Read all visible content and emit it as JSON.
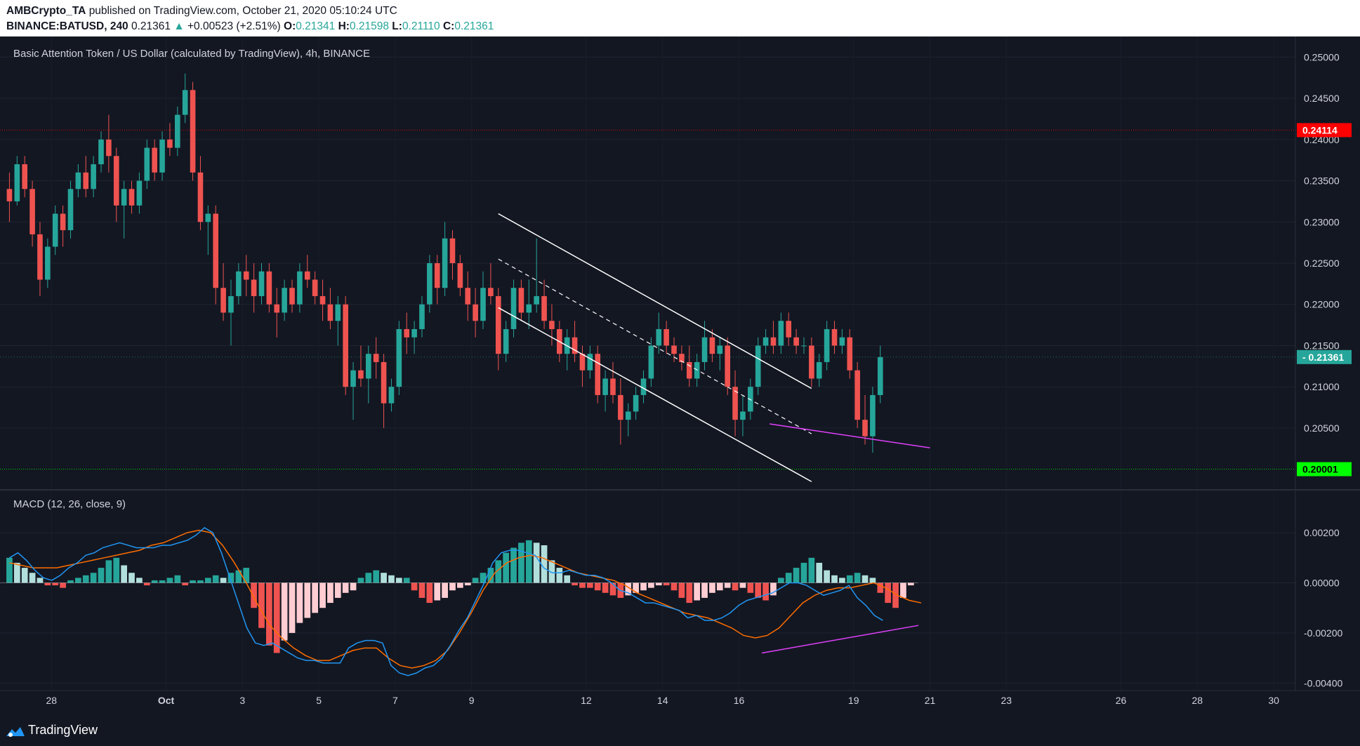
{
  "header": {
    "author": "AMBCrypto_TA",
    "published_text": "published on TradingView.com, October 21, 2020 05:10:24 UTC",
    "symbol": "BINANCE:BATUSD, 240",
    "last": "0.21361",
    "change": "+0.00523 (+2.51%)",
    "o_label": "O:",
    "o_value": "0.21341",
    "h_label": "H:",
    "h_value": "0.21598",
    "l_label": "L:",
    "l_value": "0.21110",
    "c_label": "C:",
    "c_value": "0.21361",
    "change_arrow": "▲"
  },
  "footer": {
    "brand": "TradingView",
    "logo_icon": "tradingview-logo-icon"
  },
  "colors": {
    "up": "#26a69a",
    "down": "#ef5350",
    "macd": "#2196f3",
    "signal": "#ff6d00",
    "hist_up_strong": "#26a69a",
    "hist_up_weak": "#b2dfdb",
    "hist_down_strong": "#ef5350",
    "hist_down_weak": "#ffcdd2",
    "resistance": "#ff0000",
    "support": "#00ff00",
    "divergence": "#e040fb"
  },
  "chart_data": [
    {
      "type": "candlestick",
      "title": "Basic Attention Token / US Dollar (calculated by TradingView), 4h, BINANCE",
      "ylim": [
        0.1975,
        0.2525
      ],
      "xlim": [
        0,
        167
      ],
      "y_ticks": [
        "0.25000",
        "0.24500",
        "0.24000",
        "0.23500",
        "0.23000",
        "0.22500",
        "0.22000",
        "0.21500",
        "0.21000",
        "0.20500"
      ],
      "x_ticks": [
        {
          "label": "28",
          "x": 6
        },
        {
          "label": "Oct",
          "x": 21,
          "bold": true
        },
        {
          "label": "3",
          "x": 31
        },
        {
          "label": "5",
          "x": 41
        },
        {
          "label": "7",
          "x": 51
        },
        {
          "label": "9",
          "x": 61
        },
        {
          "label": "12",
          "x": 76
        },
        {
          "label": "14",
          "x": 86
        },
        {
          "label": "16",
          "x": 96
        },
        {
          "label": "19",
          "x": 111
        },
        {
          "label": "21",
          "x": 121
        },
        {
          "label": "23",
          "x": 131
        },
        {
          "label": "26",
          "x": 146
        },
        {
          "label": "28",
          "x": 156
        },
        {
          "label": "30",
          "x": 166
        }
      ],
      "horizontal_lines": [
        {
          "name": "resistance",
          "value": 0.24114,
          "label": "0.24114",
          "color": "#ff0000"
        },
        {
          "name": "support",
          "value": 0.20001,
          "label": "0.20001",
          "color": "#00ff00"
        }
      ],
      "last_price": {
        "value": 0.21361,
        "label": "0.21361"
      },
      "channel": {
        "upper": [
          [
            64.5,
            0.231
          ],
          [
            105.5,
            0.2098
          ]
        ],
        "lower": [
          [
            64.5,
            0.2196
          ],
          [
            105.5,
            0.1985
          ]
        ],
        "mid": [
          [
            64.5,
            0.2255
          ],
          [
            105.5,
            0.2043
          ]
        ]
      },
      "divergence_line": [
        [
          100,
          0.2055
        ],
        [
          121,
          0.2026
        ]
      ],
      "candles": [
        [
          0.234,
          0.236,
          0.23,
          0.2325
        ],
        [
          0.2325,
          0.238,
          0.232,
          0.237
        ],
        [
          0.237,
          0.238,
          0.233,
          0.234
        ],
        [
          0.234,
          0.235,
          0.227,
          0.2285
        ],
        [
          0.2285,
          0.23,
          0.221,
          0.223
        ],
        [
          0.223,
          0.228,
          0.222,
          0.227
        ],
        [
          0.227,
          0.232,
          0.226,
          0.231
        ],
        [
          0.231,
          0.232,
          0.227,
          0.229
        ],
        [
          0.229,
          0.235,
          0.228,
          0.234
        ],
        [
          0.234,
          0.237,
          0.233,
          0.236
        ],
        [
          0.236,
          0.238,
          0.233,
          0.234
        ],
        [
          0.234,
          0.238,
          0.233,
          0.237
        ],
        [
          0.237,
          0.241,
          0.236,
          0.24
        ],
        [
          0.24,
          0.243,
          0.236,
          0.238
        ],
        [
          0.238,
          0.239,
          0.23,
          0.232
        ],
        [
          0.232,
          0.235,
          0.228,
          0.234
        ],
        [
          0.234,
          0.235,
          0.231,
          0.232
        ],
        [
          0.232,
          0.236,
          0.231,
          0.235
        ],
        [
          0.235,
          0.24,
          0.234,
          0.239
        ],
        [
          0.239,
          0.24,
          0.235,
          0.236
        ],
        [
          0.236,
          0.241,
          0.235,
          0.24
        ],
        [
          0.24,
          0.242,
          0.238,
          0.239
        ],
        [
          0.239,
          0.244,
          0.238,
          0.243
        ],
        [
          0.243,
          0.248,
          0.242,
          0.246
        ],
        [
          0.246,
          0.247,
          0.235,
          0.236
        ],
        [
          0.236,
          0.238,
          0.229,
          0.23
        ],
        [
          0.23,
          0.232,
          0.226,
          0.231
        ],
        [
          0.231,
          0.232,
          0.22,
          0.222
        ],
        [
          0.222,
          0.225,
          0.218,
          0.219
        ],
        [
          0.219,
          0.223,
          0.215,
          0.221
        ],
        [
          0.221,
          0.225,
          0.22,
          0.224
        ],
        [
          0.224,
          0.226,
          0.221,
          0.223
        ],
        [
          0.223,
          0.225,
          0.219,
          0.221
        ],
        [
          0.221,
          0.225,
          0.22,
          0.224
        ],
        [
          0.224,
          0.225,
          0.219,
          0.22
        ],
        [
          0.22,
          0.222,
          0.216,
          0.219
        ],
        [
          0.219,
          0.223,
          0.218,
          0.222
        ],
        [
          0.222,
          0.223,
          0.219,
          0.22
        ],
        [
          0.22,
          0.225,
          0.219,
          0.224
        ],
        [
          0.224,
          0.226,
          0.222,
          0.223
        ],
        [
          0.223,
          0.224,
          0.22,
          0.221
        ],
        [
          0.221,
          0.223,
          0.218,
          0.22
        ],
        [
          0.22,
          0.222,
          0.217,
          0.218
        ],
        [
          0.218,
          0.221,
          0.215,
          0.22
        ],
        [
          0.22,
          0.221,
          0.209,
          0.21
        ],
        [
          0.21,
          0.213,
          0.206,
          0.212
        ],
        [
          0.212,
          0.215,
          0.21,
          0.211
        ],
        [
          0.211,
          0.215,
          0.208,
          0.214
        ],
        [
          0.214,
          0.216,
          0.211,
          0.213
        ],
        [
          0.213,
          0.214,
          0.205,
          0.208
        ],
        [
          0.208,
          0.211,
          0.207,
          0.21
        ],
        [
          0.21,
          0.218,
          0.209,
          0.217
        ],
        [
          0.217,
          0.219,
          0.214,
          0.216
        ],
        [
          0.216,
          0.218,
          0.214,
          0.217
        ],
        [
          0.217,
          0.221,
          0.216,
          0.22
        ],
        [
          0.22,
          0.226,
          0.219,
          0.225
        ],
        [
          0.225,
          0.226,
          0.22,
          0.222
        ],
        [
          0.222,
          0.23,
          0.221,
          0.228
        ],
        [
          0.228,
          0.229,
          0.223,
          0.225
        ],
        [
          0.225,
          0.226,
          0.221,
          0.222
        ],
        [
          0.222,
          0.224,
          0.218,
          0.22
        ],
        [
          0.22,
          0.222,
          0.216,
          0.218
        ],
        [
          0.218,
          0.224,
          0.217,
          0.222
        ],
        [
          0.222,
          0.225,
          0.22,
          0.221
        ],
        [
          0.221,
          0.222,
          0.212,
          0.214
        ],
        [
          0.214,
          0.218,
          0.213,
          0.217
        ],
        [
          0.217,
          0.223,
          0.216,
          0.222
        ],
        [
          0.222,
          0.223,
          0.218,
          0.219
        ],
        [
          0.219,
          0.223,
          0.217,
          0.22
        ],
        [
          0.22,
          0.228,
          0.219,
          0.221
        ],
        [
          0.221,
          0.223,
          0.217,
          0.218
        ],
        [
          0.218,
          0.22,
          0.215,
          0.217
        ],
        [
          0.217,
          0.218,
          0.213,
          0.214
        ],
        [
          0.214,
          0.217,
          0.212,
          0.216
        ],
        [
          0.216,
          0.218,
          0.213,
          0.214
        ],
        [
          0.214,
          0.215,
          0.21,
          0.212
        ],
        [
          0.212,
          0.215,
          0.211,
          0.214
        ],
        [
          0.214,
          0.215,
          0.208,
          0.209
        ],
        [
          0.209,
          0.212,
          0.207,
          0.211
        ],
        [
          0.211,
          0.213,
          0.208,
          0.209
        ],
        [
          0.209,
          0.211,
          0.203,
          0.206
        ],
        [
          0.206,
          0.208,
          0.204,
          0.207
        ],
        [
          0.207,
          0.21,
          0.206,
          0.209
        ],
        [
          0.209,
          0.212,
          0.208,
          0.211
        ],
        [
          0.211,
          0.216,
          0.21,
          0.215
        ],
        [
          0.215,
          0.219,
          0.214,
          0.217
        ],
        [
          0.217,
          0.218,
          0.214,
          0.215
        ],
        [
          0.215,
          0.216,
          0.213,
          0.214
        ],
        [
          0.214,
          0.215,
          0.212,
          0.213
        ],
        [
          0.213,
          0.215,
          0.21,
          0.211
        ],
        [
          0.211,
          0.214,
          0.21,
          0.213
        ],
        [
          0.213,
          0.218,
          0.212,
          0.216
        ],
        [
          0.216,
          0.217,
          0.213,
          0.214
        ],
        [
          0.214,
          0.216,
          0.212,
          0.215
        ],
        [
          0.215,
          0.216,
          0.209,
          0.21
        ],
        [
          0.21,
          0.212,
          0.204,
          0.206
        ],
        [
          0.206,
          0.209,
          0.204,
          0.207
        ],
        [
          0.207,
          0.211,
          0.206,
          0.21
        ],
        [
          0.21,
          0.216,
          0.209,
          0.215
        ],
        [
          0.215,
          0.217,
          0.214,
          0.216
        ],
        [
          0.216,
          0.218,
          0.214,
          0.215
        ],
        [
          0.215,
          0.219,
          0.214,
          0.218
        ],
        [
          0.218,
          0.219,
          0.215,
          0.216
        ],
        [
          0.216,
          0.217,
          0.214,
          0.215
        ],
        [
          0.215,
          0.216,
          0.214,
          0.215
        ],
        [
          0.215,
          0.216,
          0.21,
          0.211
        ],
        [
          0.211,
          0.214,
          0.21,
          0.213
        ],
        [
          0.213,
          0.218,
          0.212,
          0.217
        ],
        [
          0.217,
          0.218,
          0.214,
          0.215
        ],
        [
          0.215,
          0.217,
          0.214,
          0.216
        ],
        [
          0.216,
          0.217,
          0.211,
          0.212
        ],
        [
          0.212,
          0.213,
          0.205,
          0.206
        ],
        [
          0.206,
          0.209,
          0.203,
          0.204
        ],
        [
          0.204,
          0.21,
          0.202,
          0.209
        ],
        [
          0.209,
          0.215,
          0.208,
          0.2136
        ]
      ]
    },
    {
      "type": "macd",
      "title": "MACD (12, 26, close, 9)",
      "ylim": [
        -0.0043,
        0.0036
      ],
      "y_ticks": [
        "0.00200",
        "0.00000",
        "-0.00200",
        "-0.00400"
      ],
      "y_tick_values": [
        0.002,
        0,
        -0.002,
        -0.004
      ],
      "divergence_line": [
        [
          99,
          -0.0028
        ],
        [
          119.5,
          -0.0017
        ]
      ],
      "macd": [
        0.001,
        0.0012,
        0.0009,
        0.0005,
        0.0002,
        0.0001,
        0.0003,
        0.0006,
        0.0008,
        0.0011,
        0.0012,
        0.0014,
        0.0015,
        0.0016,
        0.0015,
        0.0014,
        0.0014,
        0.0014,
        0.0015,
        0.0015,
        0.0016,
        0.0017,
        0.0019,
        0.0022,
        0.002,
        0.0012,
        0.0002,
        -0.0008,
        -0.0018,
        -0.0024,
        -0.0025,
        -0.0024,
        -0.0026,
        -0.0028,
        -0.003,
        -0.0031,
        -0.0031,
        -0.0032,
        -0.0032,
        -0.0032,
        -0.0026,
        -0.0024,
        -0.0023,
        -0.0023,
        -0.0024,
        -0.0033,
        -0.0036,
        -0.0037,
        -0.0036,
        -0.0034,
        -0.0033,
        -0.003,
        -0.0025,
        -0.0019,
        -0.0014,
        -0.0007,
        0.0,
        0.0008,
        0.0012,
        0.0013,
        0.0013,
        0.0012,
        0.0011,
        0.0006,
        0.0004,
        0.0004,
        0.0005,
        0.0004,
        0.0003,
        0.0003,
        0.0002,
        0.0,
        -0.0003,
        -0.0004,
        -0.0006,
        -0.0008,
        -0.0008,
        -0.0009,
        -0.001,
        -0.0011,
        -0.0014,
        -0.0013,
        -0.0015,
        -0.0015,
        -0.0014,
        -0.0012,
        -0.0009,
        -0.0007,
        -0.0006,
        -0.0005,
        -0.0004,
        -0.0002,
        0.0,
        0.0,
        -0.0001,
        -0.0003,
        -0.0005,
        -0.0004,
        -0.0003,
        -0.0001,
        -0.0006,
        -0.0009,
        -0.0013,
        -0.0015
      ],
      "macd_x_start": 0,
      "macd_step": 1.11,
      "signal": [
        0.0008,
        0.0007,
        0.0006,
        0.0006,
        0.0006,
        0.0007,
        0.0008,
        0.0009,
        0.001,
        0.0011,
        0.0012,
        0.0013,
        0.0015,
        0.0016,
        0.0018,
        0.002,
        0.0021,
        0.002,
        0.0015,
        0.0008,
        0.0,
        -0.0009,
        -0.0017,
        -0.0022,
        -0.0026,
        -0.0029,
        -0.0031,
        -0.0031,
        -0.0029,
        -0.0027,
        -0.0026,
        -0.0026,
        -0.003,
        -0.0033,
        -0.0034,
        -0.0033,
        -0.0031,
        -0.0027,
        -0.002,
        -0.0012,
        -0.0003,
        0.0004,
        0.0008,
        0.001,
        0.0011,
        0.001,
        0.0008,
        0.0006,
        0.0004,
        0.0003,
        0.0002,
        0.0001,
        -0.0001,
        -0.0004,
        -0.0006,
        -0.0008,
        -0.001,
        -0.0012,
        -0.0013,
        -0.0014,
        -0.0016,
        -0.0018,
        -0.0021,
        -0.0022,
        -0.0021,
        -0.0018,
        -0.0013,
        -0.0008,
        -0.0005,
        -0.0003,
        -0.0002,
        -0.0002,
        -0.0001,
        0.0,
        -0.0002,
        -0.0005,
        -0.0007,
        -0.0008
      ],
      "signal_x_start": 0,
      "signal_step": 1.55,
      "histogram": [
        0.001,
        0.0008,
        0.0006,
        0.0004,
        0.0002,
        -0.0001,
        -0.0001,
        -0.0002,
        0.0001,
        0.0002,
        0.0003,
        0.0004,
        0.0006,
        0.0009,
        0.001,
        0.0007,
        0.0004,
        0.0002,
        -0.0001,
        0.0001,
        0.0001,
        0.0002,
        0.0003,
        -0.0001,
        0.0001,
        0.0001,
        0.0002,
        0.0003,
        0.0002,
        0.0004,
        0.0005,
        0.0006,
        -0.001,
        -0.0018,
        -0.0025,
        -0.0028,
        -0.0023,
        -0.002,
        -0.0016,
        -0.0014,
        -0.0012,
        -0.001,
        -0.0008,
        -0.0006,
        -0.0004,
        -0.0003,
        0.0002,
        0.0004,
        0.0005,
        0.0004,
        0.0003,
        0.0002,
        0.0002,
        -0.0003,
        -0.0006,
        -0.0008,
        -0.0007,
        -0.0006,
        -0.0003,
        -0.0002,
        -0.0001,
        0.0002,
        0.0004,
        0.0006,
        0.0009,
        0.0012,
        0.0014,
        0.0016,
        0.0017,
        0.0016,
        0.0015,
        0.0009,
        0.0006,
        0.0003,
        -0.0001,
        -0.0002,
        -0.0002,
        -0.0003,
        -0.0004,
        -0.0005,
        -0.0006,
        -0.0005,
        -0.0004,
        -0.0003,
        -0.0002,
        -0.0001,
        -0.0001,
        -0.0003,
        -0.0006,
        -0.0008,
        -0.0007,
        -0.0006,
        -0.0004,
        -0.0003,
        -0.0002,
        -0.0003,
        -0.0002,
        -0.0004,
        -0.0006,
        -0.0007,
        -0.0005,
        0.0002,
        0.0004,
        0.0006,
        0.0008,
        0.001,
        0.0008,
        0.0005,
        0.0003,
        0.0002,
        0.0003,
        0.0004,
        0.0003,
        0.0002,
        -0.0004,
        -0.0008,
        -0.001,
        -0.0006,
        -0.0001
      ]
    }
  ]
}
